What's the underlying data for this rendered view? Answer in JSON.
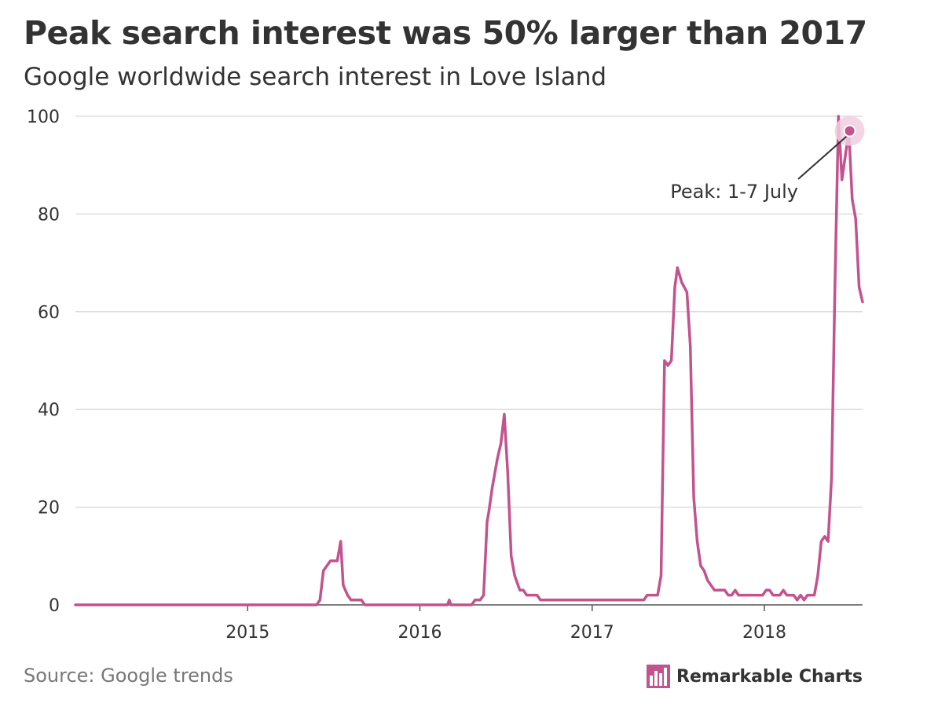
{
  "title": "Peak search interest was 50% larger than 2017",
  "subtitle": "Google worldwide search interest in Love Island",
  "source": "Source: Google trends",
  "brand": "Remarkable Charts",
  "colors": {
    "line": "#c2538f",
    "highlight": "#f0cfe0",
    "grid": "#dddddd",
    "text": "#333333"
  },
  "chart_data": {
    "type": "line",
    "title": "Peak search interest was 50% larger than 2017",
    "subtitle": "Google worldwide search interest in Love Island",
    "xlabel": "",
    "ylabel": "",
    "ylim": [
      0,
      100
    ],
    "yticks": [
      0,
      20,
      40,
      60,
      80,
      100
    ],
    "xtick_labels": [
      "2015",
      "2016",
      "2017",
      "2018"
    ],
    "xtick_values": [
      2015.0,
      2016.0,
      2017.0,
      2018.0
    ],
    "xlim": [
      2014.0,
      2018.57
    ],
    "grid": true,
    "annotation": {
      "text": "Peak: 1-7 July",
      "x": 2018.495,
      "y": 97
    },
    "series": [
      {
        "x": [
          2014.0,
          2015.4,
          2015.42,
          2015.44,
          2015.48,
          2015.49,
          2015.52,
          2015.54,
          2015.555,
          2015.58,
          2015.6,
          2015.62,
          2015.64,
          2015.66,
          2015.68,
          2015.7,
          2015.72,
          2015.74,
          2016.15,
          2016.16,
          2016.17,
          2016.18,
          2016.3,
          2016.32,
          2016.35,
          2016.37,
          2016.39,
          2016.4,
          2016.42,
          2016.45,
          2016.47,
          2016.49,
          2016.51,
          2016.53,
          2016.55,
          2016.58,
          2016.6,
          2016.62,
          2016.64,
          2016.66,
          2016.68,
          2016.7,
          2016.72,
          2017.3,
          2017.32,
          2017.38,
          2017.4,
          2017.42,
          2017.44,
          2017.46,
          2017.48,
          2017.495,
          2017.52,
          2017.55,
          2017.57,
          2017.59,
          2017.61,
          2017.63,
          2017.65,
          2017.67,
          2017.69,
          2017.71,
          2017.73,
          2017.75,
          2017.77,
          2017.79,
          2017.81,
          2017.83,
          2017.85,
          2017.87,
          2017.89,
          2017.91,
          2017.93,
          2017.95,
          2017.97,
          2017.99,
          2018.01,
          2018.03,
          2018.05,
          2018.07,
          2018.09,
          2018.11,
          2018.13,
          2018.15,
          2018.17,
          2018.19,
          2018.21,
          2018.23,
          2018.25,
          2018.27,
          2018.29,
          2018.31,
          2018.33,
          2018.35,
          2018.37,
          2018.39,
          2018.41,
          2018.43,
          2018.45,
          2018.47,
          2018.49,
          2018.51,
          2018.53,
          2018.55,
          2018.57
        ],
        "y": [
          0,
          0,
          1,
          7,
          9,
          9,
          9,
          13,
          4,
          2,
          1,
          1,
          1,
          1,
          0,
          0,
          0,
          0,
          0,
          0,
          1,
          0,
          0,
          1,
          1,
          2,
          17,
          19,
          24,
          30,
          33,
          39,
          27,
          10,
          6,
          3,
          3,
          2,
          2,
          2,
          2,
          1,
          1,
          1,
          2,
          2,
          6,
          50,
          49,
          50,
          65,
          69,
          66,
          64,
          53,
          22,
          13,
          8,
          7,
          5,
          4,
          3,
          3,
          3,
          3,
          2,
          2,
          3,
          2,
          2,
          2,
          2,
          2,
          2,
          2,
          2,
          3,
          3,
          2,
          2,
          2,
          3,
          2,
          2,
          2,
          1,
          2,
          1,
          2,
          2,
          2,
          6,
          13,
          14,
          13,
          26,
          66,
          100,
          87,
          92,
          97,
          83,
          79,
          65,
          62
        ]
      }
    ]
  }
}
